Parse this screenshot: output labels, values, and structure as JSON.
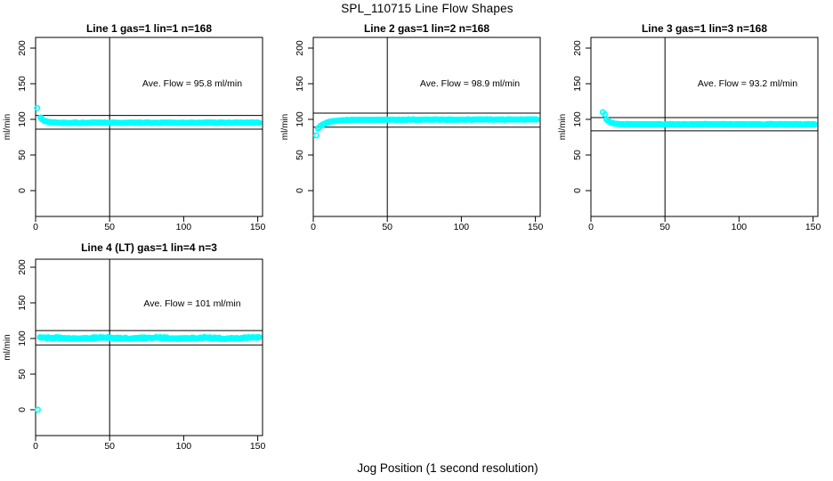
{
  "figure": {
    "title": "SPL_110715  Line Flow Shapes",
    "xlabel": "Jog Position (1 second resolution)",
    "background": "#ffffff"
  },
  "colors": {
    "points": "#00ffff",
    "lines": "#000000",
    "text": "#000000"
  },
  "axis": {
    "x_ticks": [
      0,
      50,
      100,
      150
    ],
    "y_ticks": [
      0,
      50,
      100,
      150,
      200
    ],
    "y_label": "ml/min",
    "x_max": 153,
    "y_max": 212,
    "vline_x": 50
  },
  "chart_data": [
    {
      "id": "line-1",
      "type": "scatter",
      "row": 1,
      "title": "Line 1 gas=1 lin=1 n=168",
      "ave_label": "Ave. Flow =  95.8  ml/min",
      "ave_flow": 95.8,
      "n": 168,
      "ref_upper": 105.4,
      "ref_lower": 86.2,
      "outliers": [
        [
          1,
          116
        ],
        [
          3.4,
          102.5
        ]
      ],
      "shape": {
        "start_x": 4,
        "end_x": 151,
        "start_value": 100.5,
        "settle_value": 95.3,
        "decay_tau": 3.0,
        "drift_per_x": 0,
        "noise": 0.6,
        "wave_amp": 0,
        "wave_period": 1,
        "points_count": 166,
        "seed": 11
      }
    },
    {
      "id": "line-2",
      "type": "scatter",
      "row": 1,
      "title": "Line 2 gas=1 lin=2 n=168",
      "ave_label": "Ave. Flow =  98.9  ml/min",
      "ave_flow": 98.9,
      "n": 168,
      "ref_upper": 108.8,
      "ref_lower": 89.0,
      "outliers": [
        [
          2,
          77.5
        ]
      ],
      "shape": {
        "start_x": 3.2,
        "end_x": 151,
        "start_value": 87.5,
        "settle_value": 99.3,
        "decay_tau": 5.5,
        "drift_per_x": 0.004,
        "noise": 0.55,
        "wave_amp": 0,
        "wave_period": 1,
        "points_count": 166,
        "seed": 22
      }
    },
    {
      "id": "line-3",
      "type": "scatter",
      "row": 1,
      "title": "Line 3 gas=1 lin=3 n=168",
      "ave_label": "Ave. Flow =  93.2  ml/min",
      "ave_flow": 93.2,
      "n": 168,
      "ref_upper": 102.5,
      "ref_lower": 83.9,
      "outliers": [
        [
          8,
          110
        ],
        [
          9.5,
          107
        ]
      ],
      "shape": {
        "start_x": 10.5,
        "end_x": 151,
        "start_value": 99.5,
        "settle_value": 93.1,
        "decay_tau": 3.0,
        "drift_per_x": 0,
        "noise": 0.55,
        "wave_amp": 0,
        "wave_period": 1,
        "points_count": 165,
        "seed": 33
      }
    },
    {
      "id": "line-4",
      "type": "scatter",
      "row": 2,
      "title": "Line 4 (LT) gas=1 lin=4 n=3",
      "ave_label": "Ave. Flow =  101  ml/min",
      "ave_flow": 101,
      "n": 3,
      "ref_upper": 111.1,
      "ref_lower": 90.9,
      "outliers": [
        [
          1.5,
          0
        ]
      ],
      "shape": {
        "start_x": 3,
        "end_x": 151,
        "start_value": 101.5,
        "settle_value": 100.5,
        "decay_tau": 4.0,
        "drift_per_x": 0,
        "noise": 1.25,
        "wave_amp": 0.6,
        "wave_period": 34,
        "points_count": 165,
        "seed": 44
      }
    }
  ]
}
